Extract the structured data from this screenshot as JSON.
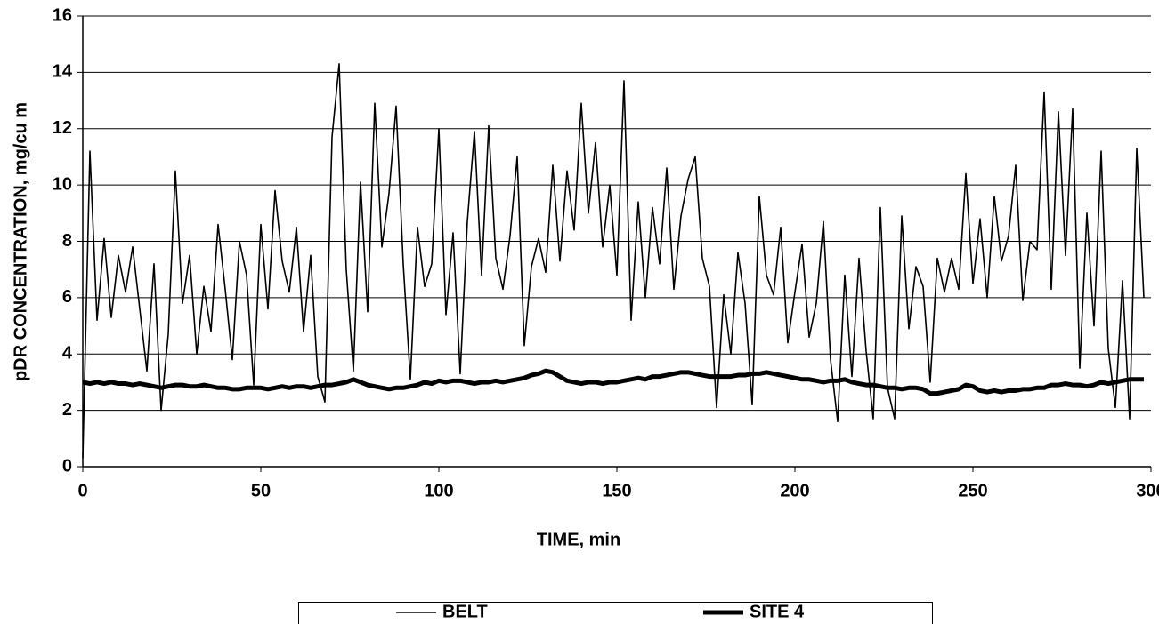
{
  "chart_data": {
    "type": "line",
    "x_label": "TIME, min",
    "y_label": "pDR CONCENTRATION, mg/cu m",
    "x": [
      0,
      2,
      4,
      6,
      8,
      10,
      12,
      14,
      16,
      18,
      20,
      22,
      24,
      26,
      28,
      30,
      32,
      34,
      36,
      38,
      40,
      42,
      44,
      46,
      48,
      50,
      52,
      54,
      56,
      58,
      60,
      62,
      64,
      66,
      68,
      70,
      72,
      74,
      76,
      78,
      80,
      82,
      84,
      86,
      88,
      90,
      92,
      94,
      96,
      98,
      100,
      102,
      104,
      106,
      108,
      110,
      112,
      114,
      116,
      118,
      120,
      122,
      124,
      126,
      128,
      130,
      132,
      134,
      136,
      138,
      140,
      142,
      144,
      146,
      148,
      150,
      152,
      154,
      156,
      158,
      160,
      162,
      164,
      166,
      168,
      170,
      172,
      174,
      176,
      178,
      180,
      182,
      184,
      186,
      188,
      190,
      192,
      194,
      196,
      198,
      200,
      202,
      204,
      206,
      208,
      210,
      212,
      214,
      216,
      218,
      220,
      222,
      224,
      226,
      228,
      230,
      232,
      234,
      236,
      238,
      240,
      242,
      244,
      246,
      248,
      250,
      252,
      254,
      256,
      258,
      260,
      262,
      264,
      266,
      268,
      270,
      272,
      274,
      276,
      278,
      280,
      282,
      284,
      286,
      288,
      290,
      292,
      294,
      296,
      298
    ],
    "series": [
      {
        "name": "BELT",
        "color": "#000000",
        "values": [
          0.3,
          11.2,
          5.2,
          8.1,
          5.3,
          7.5,
          6.2,
          7.8,
          5.6,
          3.4,
          7.2,
          2.0,
          4.7,
          10.5,
          5.8,
          7.5,
          4.0,
          6.4,
          4.8,
          8.6,
          6.3,
          3.8,
          8.0,
          6.8,
          2.9,
          8.6,
          5.6,
          9.8,
          7.3,
          6.2,
          8.5,
          4.8,
          7.5,
          3.2,
          2.3,
          11.7,
          14.3,
          7.0,
          3.4,
          10.1,
          5.5,
          12.9,
          7.8,
          9.7,
          12.8,
          7.2,
          3.1,
          8.5,
          6.4,
          7.2,
          12.0,
          5.4,
          8.3,
          3.3,
          8.7,
          11.9,
          6.8,
          12.1,
          7.4,
          6.3,
          8.2,
          11.0,
          4.3,
          7.1,
          8.1,
          6.9,
          10.7,
          7.3,
          10.5,
          8.4,
          12.9,
          9.0,
          11.5,
          7.8,
          10.0,
          6.8,
          13.7,
          5.2,
          9.4,
          6.0,
          9.2,
          7.2,
          10.6,
          6.3,
          8.9,
          10.2,
          11.0,
          7.4,
          6.4,
          2.1,
          6.1,
          4.0,
          7.6,
          5.8,
          2.2,
          9.6,
          6.8,
          6.1,
          8.5,
          4.4,
          6.2,
          7.9,
          4.6,
          5.8,
          8.7,
          3.8,
          1.6,
          6.8,
          3.2,
          7.4,
          4.1,
          1.7,
          9.2,
          2.8,
          1.7,
          8.9,
          4.9,
          7.1,
          6.4,
          3.0,
          7.4,
          6.2,
          7.4,
          6.3,
          10.4,
          6.5,
          8.8,
          6.0,
          9.6,
          7.3,
          8.2,
          10.7,
          5.9,
          8.0,
          7.7,
          13.3,
          6.3,
          12.6,
          7.5,
          12.7,
          3.5,
          9.0,
          5.0,
          11.2,
          4.2,
          2.1,
          6.6,
          1.7,
          11.3,
          6.0
        ]
      },
      {
        "name": "SITE 4",
        "color": "#000000",
        "values": [
          3.0,
          2.95,
          3.0,
          2.95,
          3.0,
          2.95,
          2.95,
          2.9,
          2.95,
          2.9,
          2.85,
          2.8,
          2.85,
          2.9,
          2.9,
          2.85,
          2.85,
          2.9,
          2.85,
          2.8,
          2.8,
          2.75,
          2.75,
          2.8,
          2.8,
          2.8,
          2.75,
          2.8,
          2.85,
          2.8,
          2.85,
          2.85,
          2.8,
          2.85,
          2.9,
          2.9,
          2.95,
          3.0,
          3.1,
          3.0,
          2.9,
          2.85,
          2.8,
          2.75,
          2.8,
          2.8,
          2.85,
          2.9,
          3.0,
          2.95,
          3.05,
          3.0,
          3.05,
          3.05,
          3.0,
          2.95,
          3.0,
          3.0,
          3.05,
          3.0,
          3.05,
          3.1,
          3.15,
          3.25,
          3.3,
          3.4,
          3.35,
          3.2,
          3.05,
          3.0,
          2.95,
          3.0,
          3.0,
          2.95,
          3.0,
          3.0,
          3.05,
          3.1,
          3.15,
          3.1,
          3.2,
          3.2,
          3.25,
          3.3,
          3.35,
          3.35,
          3.3,
          3.25,
          3.2,
          3.2,
          3.2,
          3.2,
          3.25,
          3.25,
          3.3,
          3.3,
          3.35,
          3.3,
          3.25,
          3.2,
          3.15,
          3.1,
          3.1,
          3.05,
          3.0,
          3.05,
          3.05,
          3.1,
          3.0,
          2.95,
          2.9,
          2.9,
          2.85,
          2.8,
          2.8,
          2.75,
          2.8,
          2.8,
          2.75,
          2.6,
          2.6,
          2.65,
          2.7,
          2.75,
          2.9,
          2.85,
          2.7,
          2.65,
          2.7,
          2.65,
          2.7,
          2.7,
          2.75,
          2.75,
          2.8,
          2.8,
          2.9,
          2.9,
          2.95,
          2.9,
          2.9,
          2.85,
          2.9,
          3.0,
          2.95,
          3.0,
          3.05,
          3.1,
          3.1,
          3.1
        ]
      }
    ],
    "xlim": [
      0,
      300
    ],
    "xticks": [
      0,
      50,
      100,
      150,
      200,
      250,
      300
    ],
    "ylim": [
      0,
      16
    ],
    "yticks": [
      0,
      2,
      4,
      6,
      8,
      10,
      12,
      14,
      16
    ],
    "grid": true,
    "legend": "bottom"
  }
}
